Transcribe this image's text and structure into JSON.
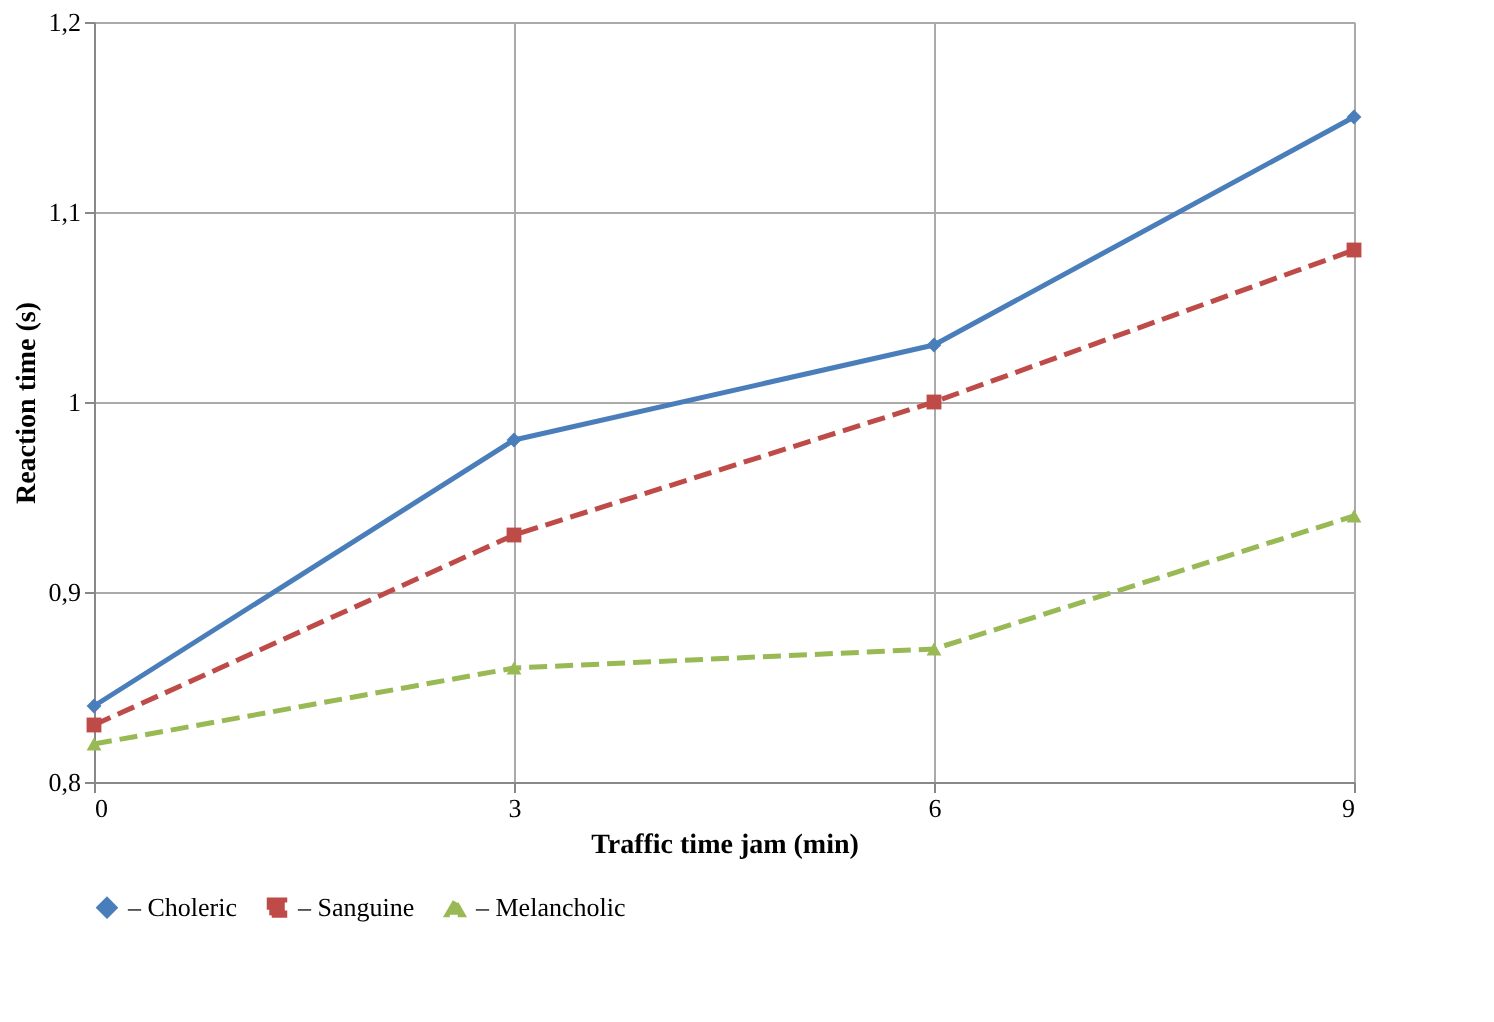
{
  "chart_data": {
    "type": "line",
    "xlabel": "Traffic time jam (min)",
    "ylabel": "Reaction time (s)",
    "x": [
      0,
      3,
      6,
      9
    ],
    "series": [
      {
        "name": "– Choleric",
        "color": "#4a7ebb",
        "values": [
          0.84,
          0.98,
          1.03,
          1.15
        ],
        "marker": "diamond",
        "line_style": "solid"
      },
      {
        "name": "– Sanguine",
        "color": "#be4b48",
        "values": [
          0.83,
          0.93,
          1.0,
          1.08
        ],
        "marker": "square",
        "line_style": "dashed"
      },
      {
        "name": "– Melancholic",
        "color": "#98b954",
        "values": [
          0.82,
          0.86,
          0.87,
          0.94
        ],
        "marker": "triangle",
        "line_style": "dashed"
      }
    ],
    "xlim": [
      0,
      9
    ],
    "xticks": [
      0,
      3,
      6,
      9
    ],
    "ylim": [
      0.8,
      1.2
    ],
    "yticks": [
      {
        "value": 0.8,
        "label": "0,8"
      },
      {
        "value": 0.9,
        "label": "0,9"
      },
      1,
      {
        "value": 1.1,
        "label": "1,1"
      },
      {
        "value": 1.2,
        "label": "1,2"
      }
    ],
    "grid": true,
    "legend": "bottom"
  }
}
